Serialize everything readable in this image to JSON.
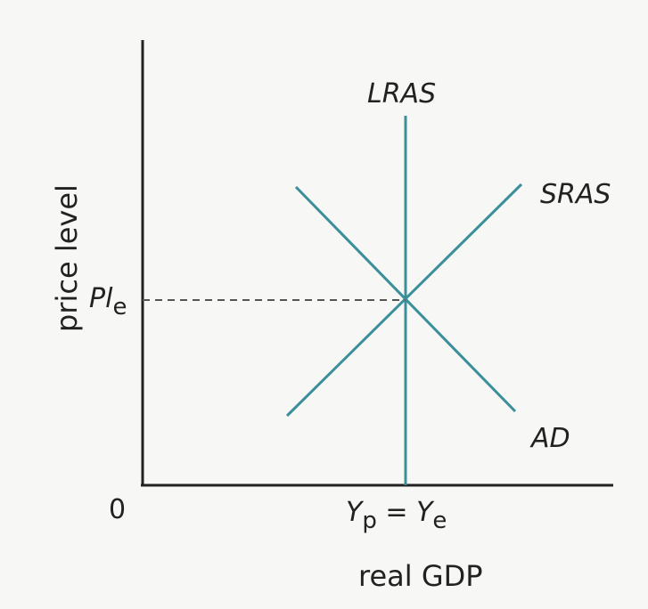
{
  "diagram": {
    "title": "",
    "y_axis_label": "price level",
    "x_axis_label": "real GDP",
    "origin_label": "0",
    "curves": {
      "lras": "LRAS",
      "sras": "SRAS",
      "ad": "AD"
    },
    "equilibrium": {
      "price_label_main": "Pl",
      "price_label_sub": "e",
      "output_label_y1": "Y",
      "output_label_sub1": "p",
      "output_label_eq": " = ",
      "output_label_y2": "Y",
      "output_label_sub2": "e"
    },
    "colors": {
      "axis": "#222222",
      "curve": "#3a8f9b",
      "dashed": "#555555",
      "background": "#f7f7f5"
    }
  }
}
